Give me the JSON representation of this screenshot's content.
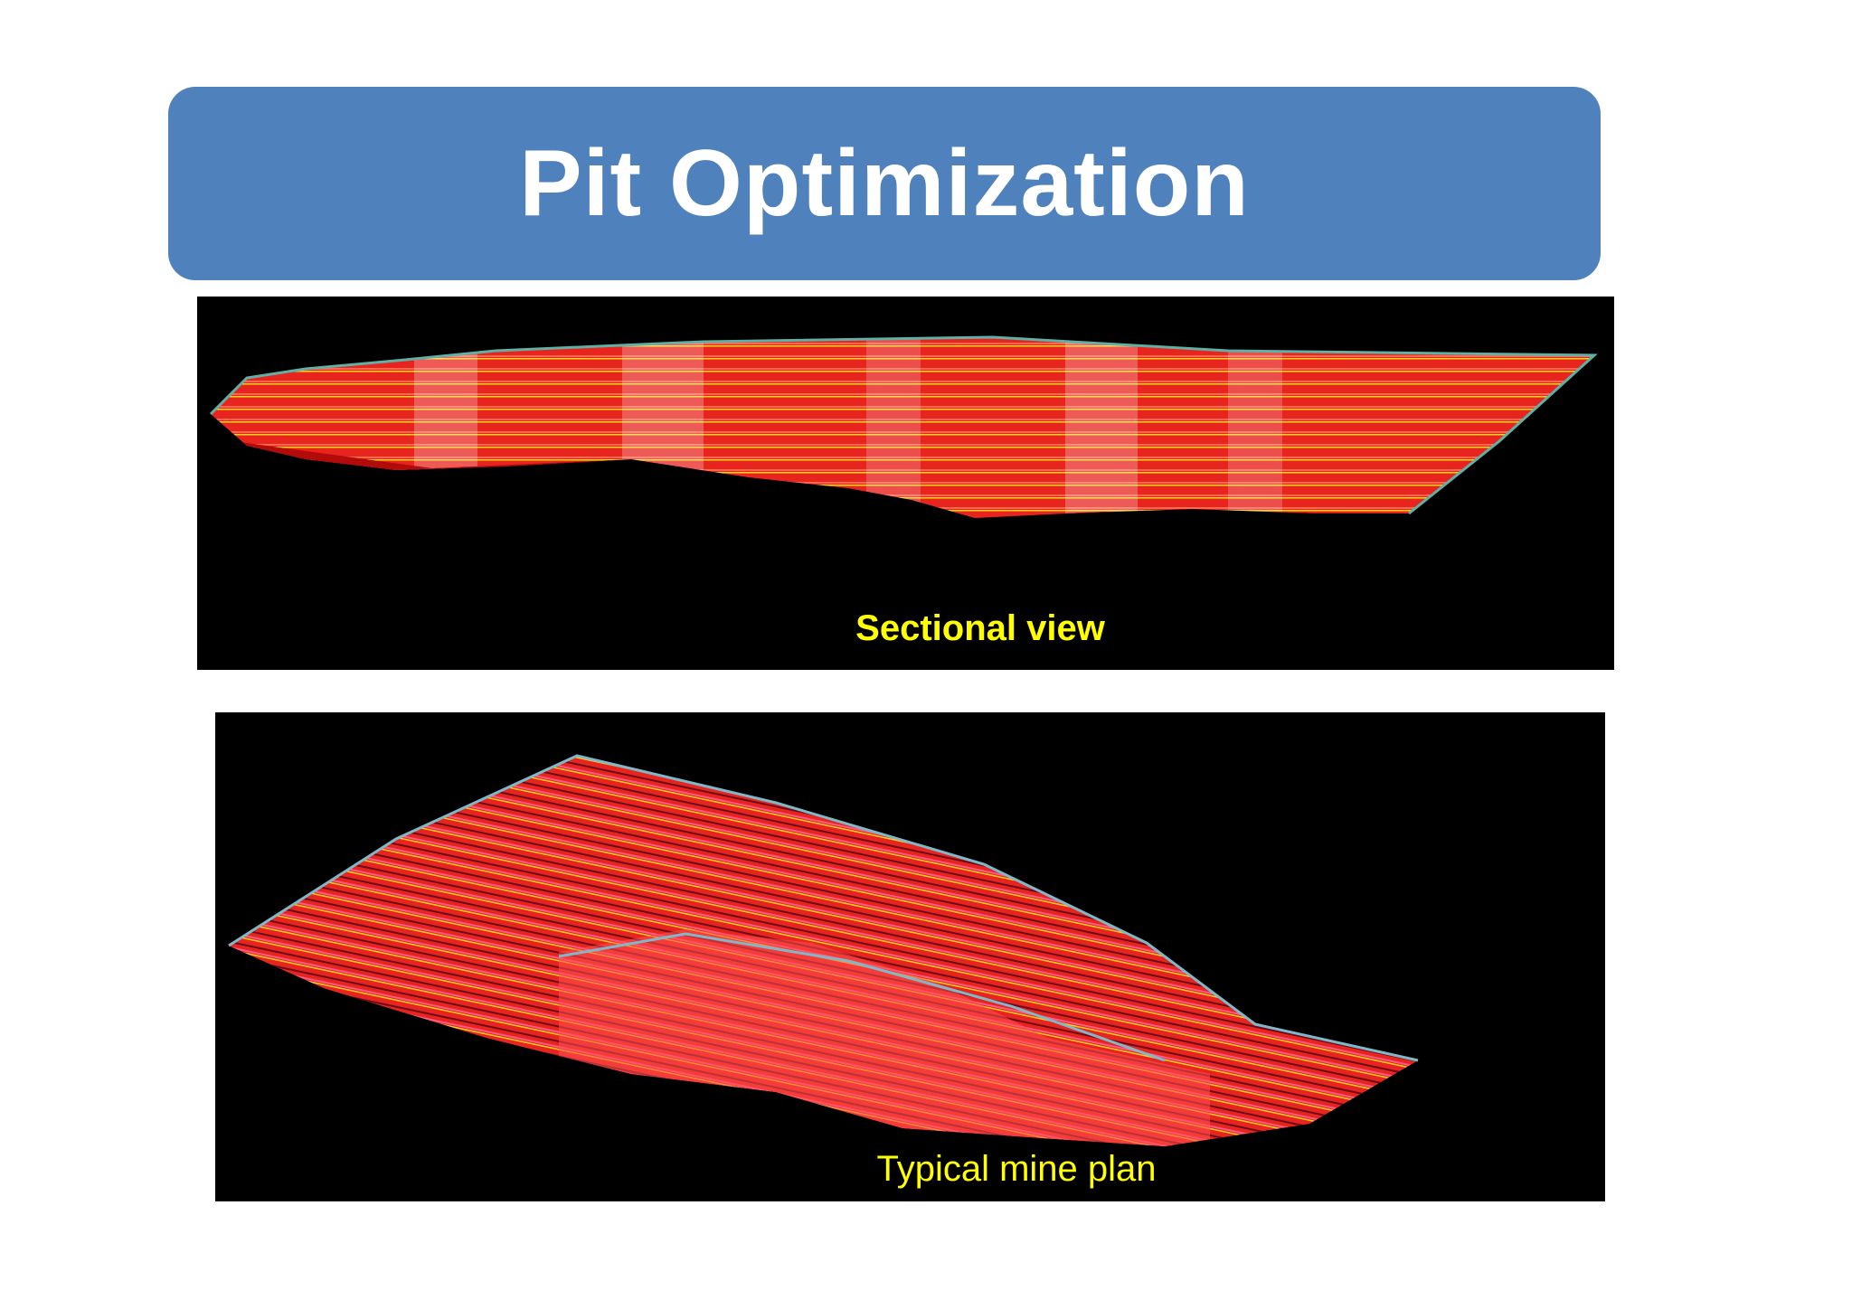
{
  "slide": {
    "title": "Pit Optimization",
    "banner_color": "#4f81bd"
  },
  "sectional_panel": {
    "caption": "Sectional view",
    "caption_color": "#ffff00",
    "pit_color": "#e8241e"
  },
  "plan_panel": {
    "caption": "Typical mine plan",
    "caption_color": "#ffff00",
    "pit_color": "#e8241e"
  }
}
